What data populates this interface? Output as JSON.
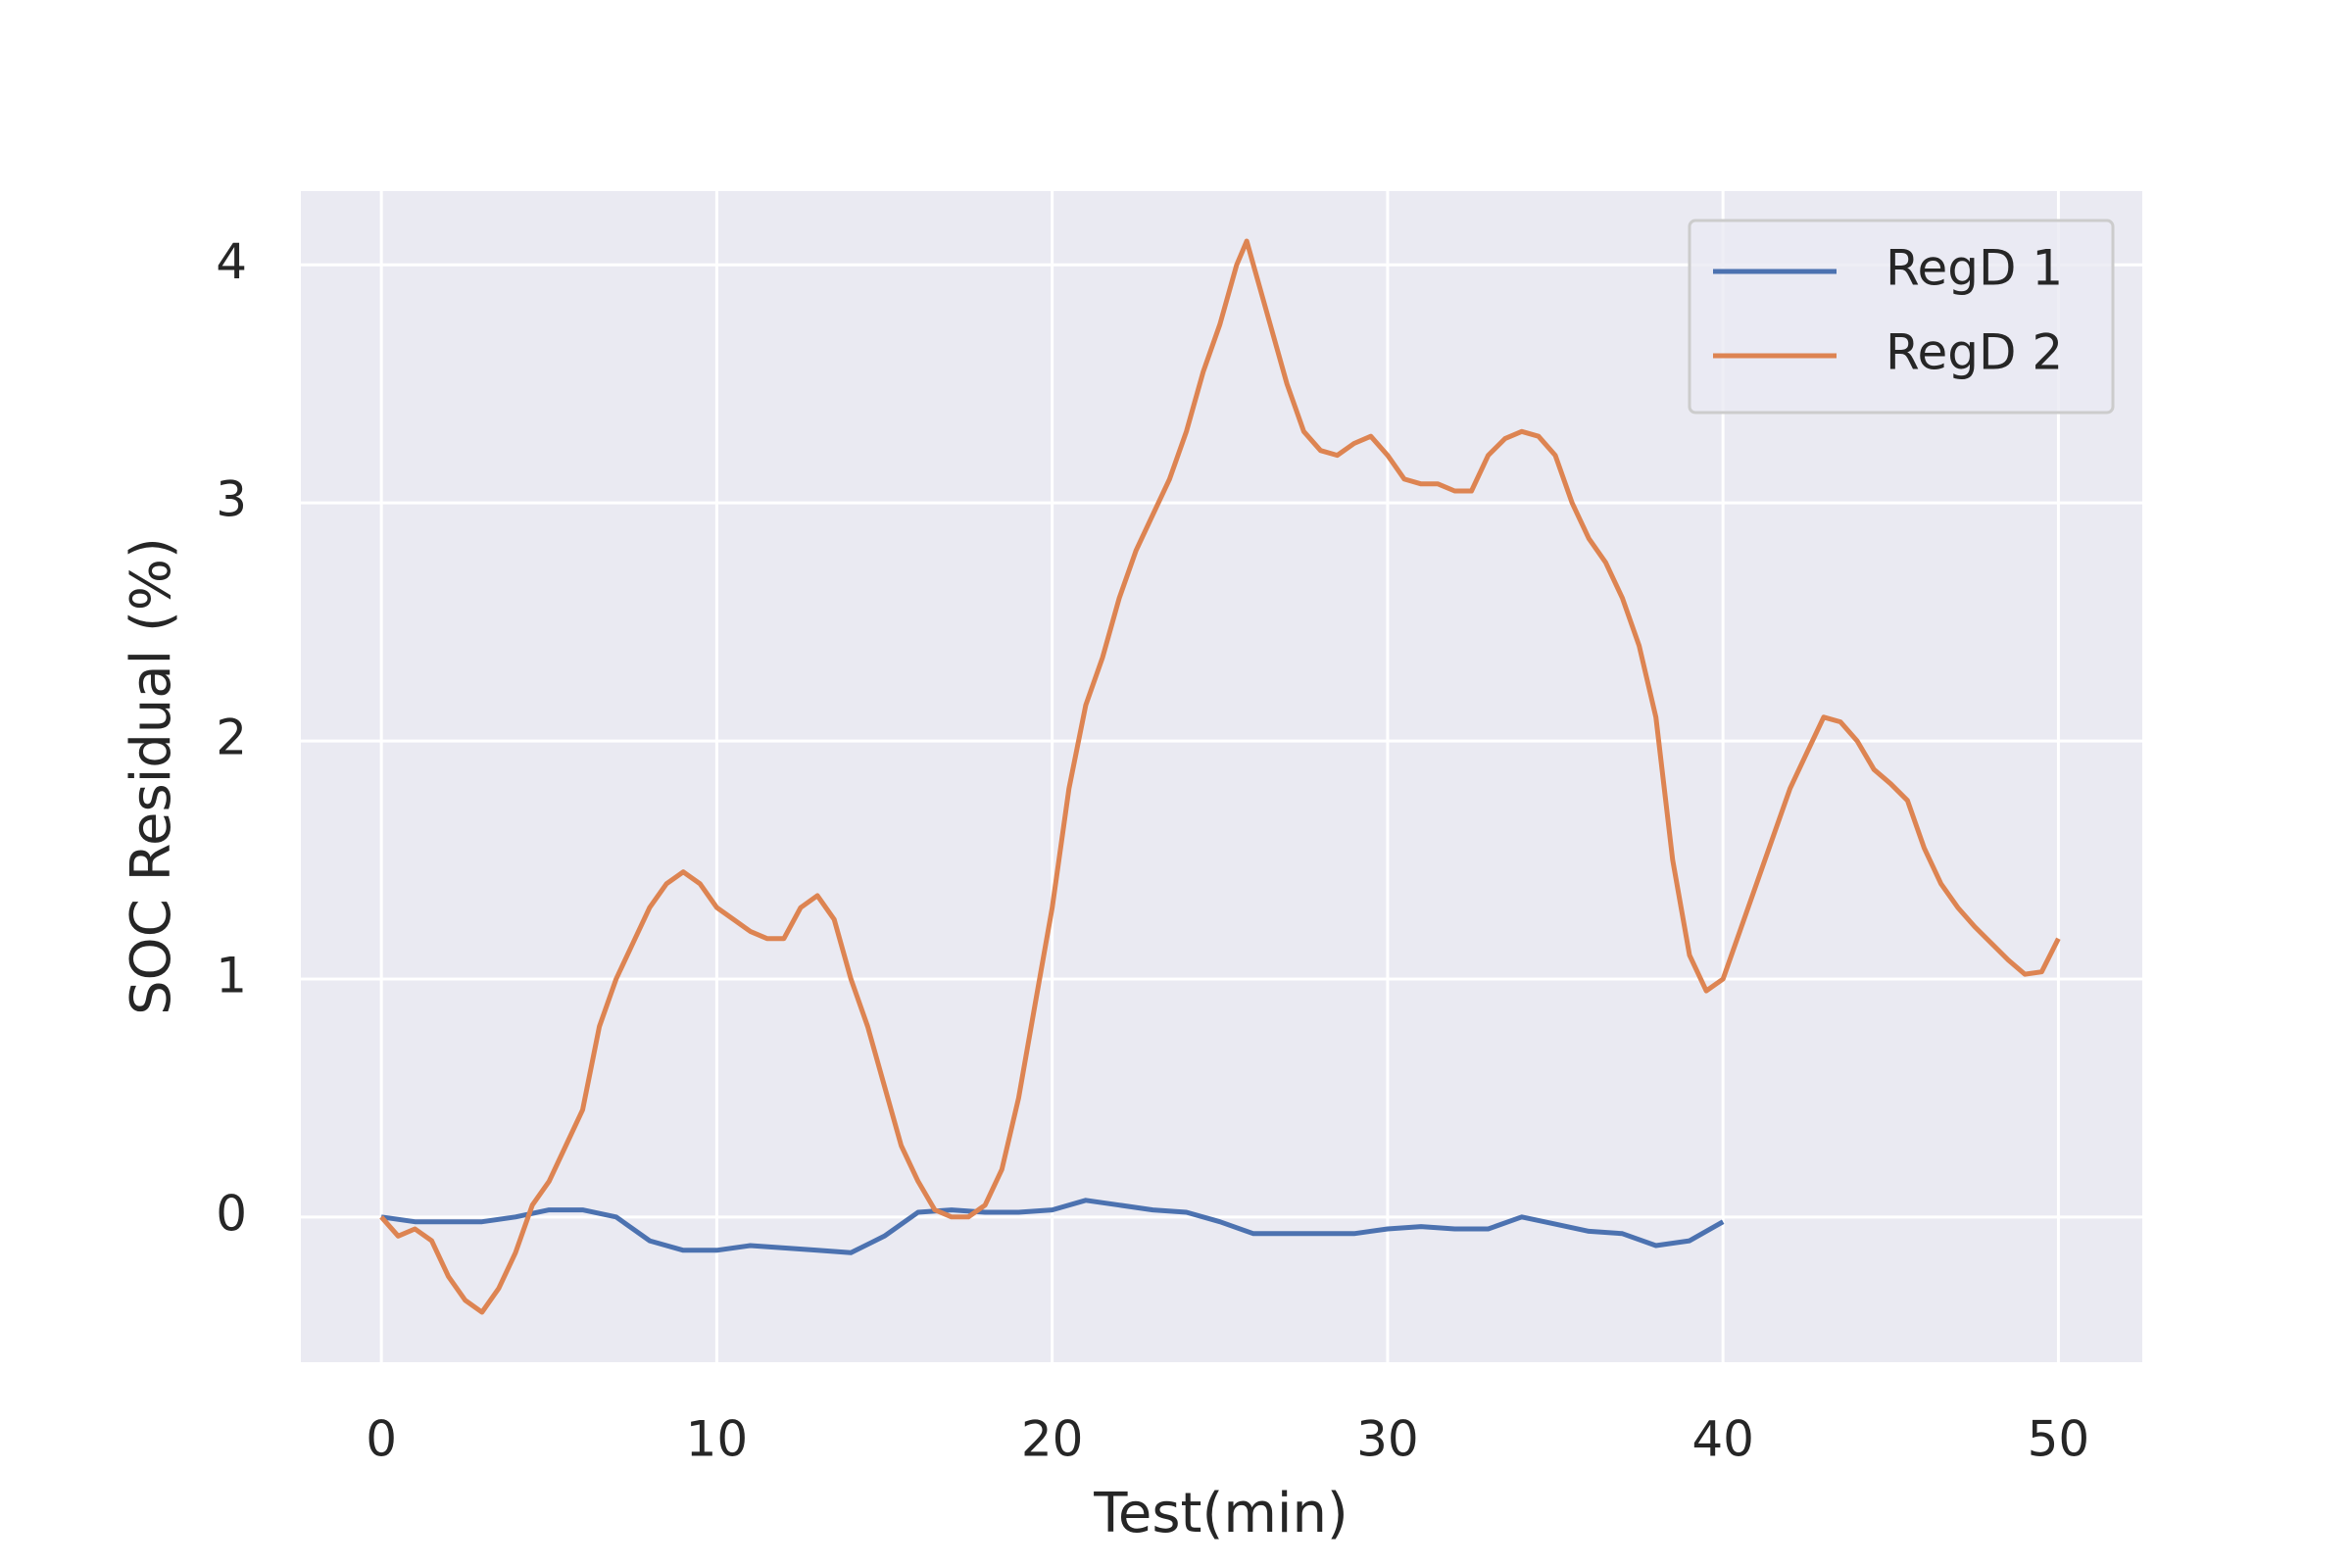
{
  "chart_data": {
    "type": "line",
    "xlabel": "Test(min)",
    "ylabel": "SOC Residual (%)",
    "xlim": [
      -2.4,
      52.5
    ],
    "ylim": [
      -0.61,
      4.31
    ],
    "xticks": [
      0,
      10,
      20,
      30,
      40,
      50
    ],
    "yticks": [
      0,
      1,
      2,
      3,
      4
    ],
    "grid": true,
    "legend": "upper right",
    "series": [
      {
        "name": "RegD 1",
        "color": "#4c72b0",
        "x": [
          0,
          1,
          2,
          3,
          4,
          5,
          6,
          7,
          8,
          9,
          10,
          11,
          12,
          13,
          14,
          15,
          16,
          17,
          18,
          19,
          20,
          21,
          22,
          23,
          24,
          25,
          26,
          27,
          28,
          29,
          30,
          31,
          32,
          33,
          34,
          35,
          36,
          37,
          38,
          39,
          40
        ],
        "values": [
          0,
          -0.02,
          -0.02,
          -0.02,
          0,
          0.03,
          0.03,
          0,
          -0.1,
          -0.14,
          -0.14,
          -0.12,
          -0.13,
          -0.14,
          -0.15,
          -0.08,
          0.02,
          0.03,
          0.02,
          0.02,
          0.03,
          0.07,
          0.05,
          0.03,
          0.02,
          -0.02,
          -0.07,
          -0.07,
          -0.07,
          -0.07,
          -0.05,
          -0.04,
          -0.05,
          -0.05,
          0,
          -0.03,
          -0.06,
          -0.07,
          -0.12,
          -0.1,
          -0.02
        ]
      },
      {
        "name": "RegD 2",
        "color": "#dd8452",
        "x": [
          0,
          0.5,
          1,
          1.5,
          2,
          2.5,
          3,
          3.5,
          4,
          4.5,
          5,
          5.5,
          6,
          6.5,
          7,
          7.5,
          8,
          8.5,
          9,
          9.5,
          10,
          10.5,
          11,
          11.5,
          12,
          12.5,
          13,
          13.5,
          14,
          14.5,
          15,
          15.5,
          16,
          16.5,
          17,
          17.5,
          18,
          18.5,
          19,
          19.5,
          20,
          20.5,
          21,
          21.5,
          22,
          22.5,
          23,
          23.5,
          24,
          24.5,
          25,
          25.5,
          25.8,
          26,
          26.5,
          27,
          27.5,
          28,
          28.5,
          29,
          29.5,
          30,
          30.5,
          31,
          31.5,
          32,
          32.5,
          33,
          33.5,
          34,
          34.5,
          35,
          35.5,
          36,
          36.5,
          37,
          37.5,
          38,
          38.5,
          39,
          39.5,
          40,
          40.5,
          41,
          41.5,
          42,
          42.5,
          43,
          43.5,
          44,
          44.5,
          45,
          45.5,
          46,
          46.5,
          47,
          47.5,
          48,
          48.5,
          49,
          49.5,
          50
        ],
        "values": [
          0,
          -0.08,
          -0.05,
          -0.1,
          -0.25,
          -0.35,
          -0.4,
          -0.3,
          -0.15,
          0.05,
          0.15,
          0.3,
          0.45,
          0.8,
          1.0,
          1.15,
          1.3,
          1.4,
          1.45,
          1.4,
          1.3,
          1.25,
          1.2,
          1.17,
          1.17,
          1.3,
          1.35,
          1.25,
          1.0,
          0.8,
          0.55,
          0.3,
          0.15,
          0.03,
          0,
          0,
          0.05,
          0.2,
          0.5,
          0.9,
          1.3,
          1.8,
          2.15,
          2.35,
          2.6,
          2.8,
          2.95,
          3.1,
          3.3,
          3.55,
          3.75,
          4.0,
          4.1,
          4.0,
          3.75,
          3.5,
          3.3,
          3.22,
          3.2,
          3.25,
          3.28,
          3.2,
          3.1,
          3.08,
          3.08,
          3.05,
          3.05,
          3.2,
          3.27,
          3.3,
          3.28,
          3.2,
          3.0,
          2.85,
          2.75,
          2.6,
          2.4,
          2.1,
          1.5,
          1.1,
          0.95,
          1.0,
          1.2,
          1.4,
          1.6,
          1.8,
          1.95,
          2.1,
          2.08,
          2.0,
          1.88,
          1.82,
          1.75,
          1.55,
          1.4,
          1.3,
          1.22,
          1.15,
          1.08,
          1.02,
          1.03,
          1.17
        ]
      }
    ]
  }
}
